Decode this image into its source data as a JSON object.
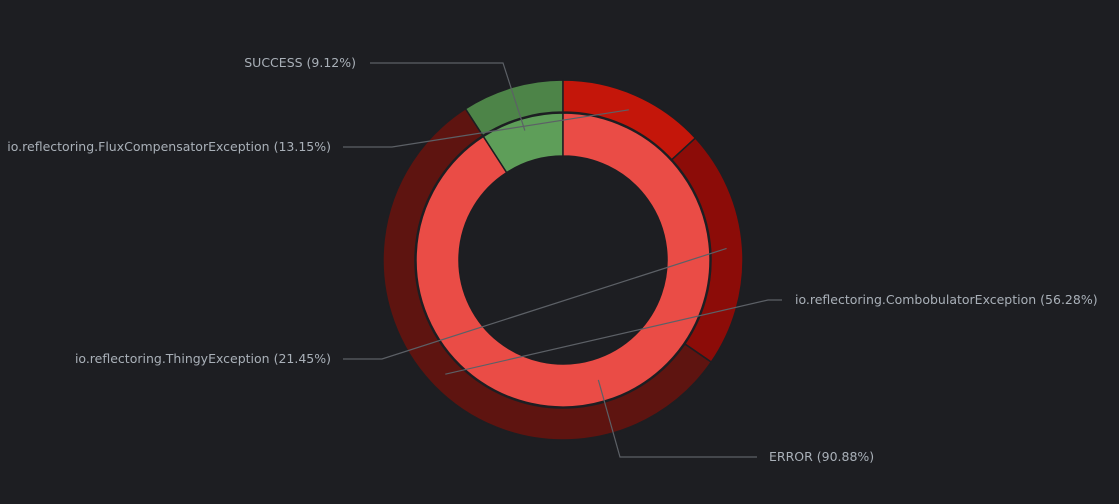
{
  "chart_data": {
    "type": "pie",
    "subtype": "nested-donut",
    "inner": [
      {
        "label": "SUCCESS (9.12%)",
        "name": "SUCCESS",
        "value": 9.12,
        "color": "#5e9e59"
      },
      {
        "label": "ERROR (90.88%)",
        "name": "ERROR",
        "value": 90.88,
        "color": "#ea4c46"
      }
    ],
    "outer": [
      {
        "label": "SUCCESS (9.12%)",
        "name": "SUCCESS",
        "value": 9.12,
        "color": "#4d8448"
      },
      {
        "label": "io.reflectoring.FluxCompensatorException (13.15%)",
        "name": "io.reflectoring.FluxCompensatorException",
        "value": 13.15,
        "color": "#c4160a"
      },
      {
        "label": "io.reflectoring.ThingyException (21.45%)",
        "name": "io.reflectoring.ThingyException",
        "value": 21.45,
        "color": "#8c0c08"
      },
      {
        "label": "io.reflectoring.CombobulatorException (56.28%)",
        "name": "io.reflectoring.CombobulatorException",
        "value": 56.28,
        "color": "#5e1410"
      }
    ],
    "background": "#1d1e22",
    "label_color": "#a9b0b8"
  }
}
